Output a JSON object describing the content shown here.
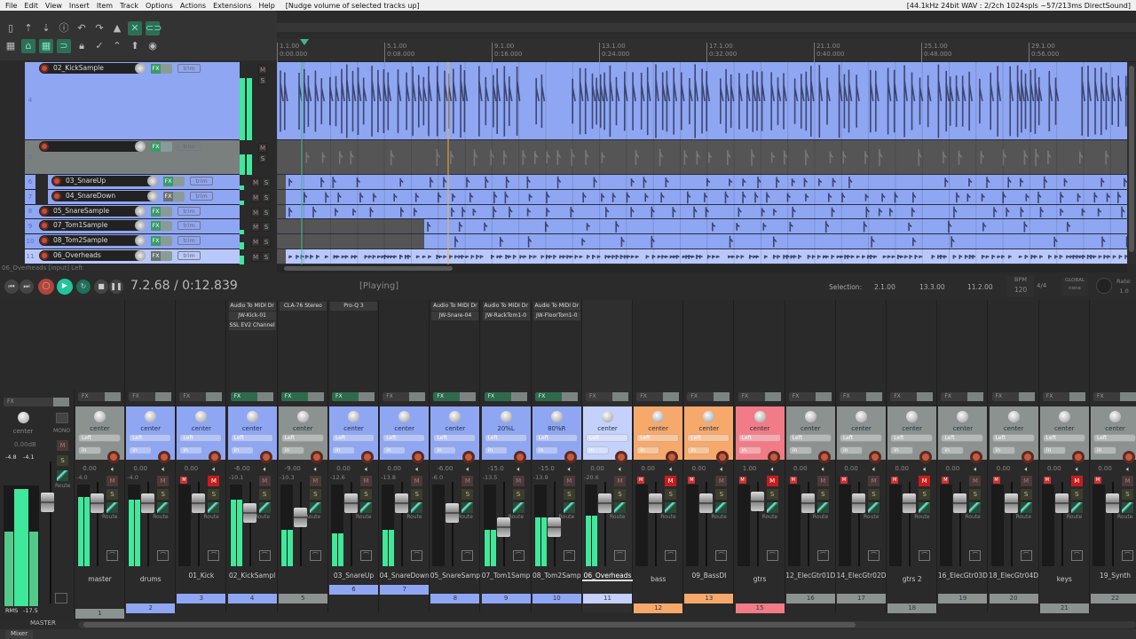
{
  "menu": [
    "File",
    "Edit",
    "View",
    "Insert",
    "Item",
    "Track",
    "Options",
    "Actions",
    "Extensions",
    "Help"
  ],
  "menu_status": "[Nudge volume of selected tracks up]",
  "audio_status": "[44.1kHz 24bit WAV : 2/2ch 1024spls ~57/213ms DirectSound]",
  "ruler": [
    [
      "1.1.00",
      "0:00.000"
    ],
    [
      "5.1.00",
      "0:08.000"
    ],
    [
      "9.1.00",
      "0:16.000"
    ],
    [
      "13.1.00",
      "0:24.000"
    ],
    [
      "17.1.00",
      "0:32.000"
    ],
    [
      "21.1.00",
      "0:40.000"
    ],
    [
      "25.1.00",
      "0:48.000"
    ],
    [
      "29.1.00",
      "0:56.000"
    ]
  ],
  "tracks": [
    {
      "num": "4",
      "name": "02_KickSample",
      "color": "#8fa6f3",
      "fx": true
    },
    {
      "num": "5",
      "name": "",
      "color": "#7a807e",
      "fx": true
    },
    {
      "num": "6",
      "name": "03_SnareUp",
      "color": "#8fa6f3",
      "fx": true
    },
    {
      "num": "7",
      "name": "04_SnareDown",
      "color": "#8fa6f3",
      "fx": false
    },
    {
      "num": "8",
      "name": "05_SnareSample",
      "color": "#8fa6f3",
      "fx": true
    },
    {
      "num": "9",
      "name": "07_Tom1Sample",
      "color": "#8fa6f3",
      "fx": true
    },
    {
      "num": "10",
      "name": "08_Tom2Sample",
      "color": "#8fa6f3",
      "fx": true
    },
    {
      "num": "11",
      "name": "06_Overheads",
      "color": "#b9c8fb",
      "fx": false
    }
  ],
  "trim_label": "trim",
  "fx_label": "FX",
  "m": "M",
  "s": "S",
  "status_line": "06_Overheads [input] Left",
  "transport": {
    "time": "7.2.68 / 0:12.839",
    "state": "[Playing]",
    "selection_label": "Selection:",
    "sel_start": "2.1.00",
    "sel_end": "13.3.00",
    "sel_len": "11.2.00",
    "bpm_label": "BPM",
    "bpm": "120",
    "timesig": "4/4",
    "global": "GLOBAL",
    "global_val": "none",
    "rate_label": "Rate:",
    "rate": "1.0"
  },
  "master": {
    "pan": "center",
    "mono": "MONO",
    "vol": "0.00dB",
    "peak_l": "-4.8",
    "peak_r": "-4.1",
    "rms": "RMS",
    "rms_val": "-17.5",
    "label": "MASTER",
    "route": "Route",
    "trim": "trim"
  },
  "strip_labels": {
    "left": "Left",
    "in": "in",
    "route": "Route",
    "trim": "trim"
  },
  "strips": [
    {
      "name": "master",
      "num": "1",
      "color": "#8c928f",
      "pan": "center",
      "vol": "0.00",
      "peak": "-4.0",
      "fxon": false,
      "fxlist": [],
      "mute": false,
      "pm": false,
      "meter": 0.85,
      "depth": 0
    },
    {
      "name": "drums",
      "num": "2",
      "color": "#8fa6f3",
      "pan": "center",
      "vol": "0.00",
      "peak": "-4.0",
      "fxon": false,
      "fxlist": [],
      "mute": false,
      "pm": false,
      "meter": 0.82,
      "depth": 1
    },
    {
      "name": "01_Kick",
      "num": "3",
      "color": "#8fa6f3",
      "pan": "center",
      "vol": "0.00",
      "peak": "",
      "fxon": false,
      "fxlist": [],
      "mute": true,
      "pm": true,
      "meter": 0,
      "depth": 2
    },
    {
      "name": "02_KickSampl",
      "num": "4",
      "color": "#8fa6f3",
      "pan": "center",
      "vol": "-6.00",
      "peak": "-10.1",
      "fxon": true,
      "fxlist": [
        "Audio To MIDI Dr",
        "JW-Kick-01",
        "SSL EV2 Channel"
      ],
      "mute": false,
      "pm": false,
      "meter": 0.82,
      "depth": 2
    },
    {
      "name": "",
      "num": "5",
      "color": "#8c928f",
      "pan": "center",
      "vol": "-9.00",
      "peak": "-10.3",
      "fxon": true,
      "fxlist": [
        "CLA-76 Stereo"
      ],
      "mute": false,
      "pm": false,
      "meter": 0.45,
      "depth": 2
    },
    {
      "name": "03_SnareUp",
      "num": "6",
      "color": "#8fa6f3",
      "pan": "center",
      "vol": "0.00",
      "peak": "-12.6",
      "fxon": true,
      "fxlist": [
        "Pro-Q 3"
      ],
      "mute": false,
      "pm": false,
      "meter": 0.4,
      "depth": 3
    },
    {
      "name": "04_SnareDown",
      "num": "7",
      "color": "#8fa6f3",
      "pan": "center",
      "vol": "0.00",
      "peak": "-13.8",
      "fxon": false,
      "fxlist": [],
      "mute": false,
      "pm": false,
      "meter": 0.45,
      "depth": 3
    },
    {
      "name": "05_SnareSamp",
      "num": "8",
      "color": "#8fa6f3",
      "pan": "center",
      "vol": "-6.00",
      "peak": "-6.0",
      "fxon": true,
      "fxlist": [
        "Audio To MIDI Dr",
        "JW-Snare-04"
      ],
      "mute": false,
      "pm": false,
      "meter": 0,
      "depth": 2
    },
    {
      "name": "07_Tom1Samp",
      "num": "9",
      "color": "#8fa6f3",
      "pan": "20%L",
      "vol": "-15.0",
      "peak": "-13.5",
      "fxon": true,
      "fxlist": [
        "Audio To MIDI Dr",
        "JW-RackTom1-0"
      ],
      "mute": false,
      "pm": false,
      "meter": 0.45,
      "depth": 2
    },
    {
      "name": "08_Tom2Samp",
      "num": "10",
      "color": "#8fa6f3",
      "pan": "80%R",
      "vol": "-15.0",
      "peak": "-13.9",
      "fxon": true,
      "fxlist": [
        "Audio To MIDI Dr",
        "JW-FloorTom1-0"
      ],
      "mute": false,
      "pm": false,
      "meter": 0.6,
      "depth": 2
    },
    {
      "name": "06_Overheads",
      "num": "11",
      "color": "#c4d1fb",
      "pan": "center",
      "vol": "0.00",
      "peak": "-20.6",
      "fxon": false,
      "fxlist": [],
      "mute": false,
      "pm": false,
      "meter": 0.62,
      "depth": 2
    },
    {
      "name": "bass",
      "num": "12",
      "color": "#f6a96b",
      "pan": "center",
      "vol": "0.00",
      "peak": "",
      "fxon": false,
      "fxlist": [],
      "mute": true,
      "pm": true,
      "meter": 0,
      "depth": 1
    },
    {
      "name": "09_BassDI",
      "num": "13",
      "color": "#f6a96b",
      "pan": "center",
      "vol": "0.00",
      "peak": "",
      "fxon": false,
      "fxlist": [],
      "mute": false,
      "pm": true,
      "meter": 0,
      "depth": 2
    },
    {
      "name": "gtrs",
      "num": "15",
      "color": "#f17b86",
      "pan": "center",
      "vol": "1.00",
      "peak": "",
      "fxon": false,
      "fxlist": [],
      "mute": true,
      "pm": true,
      "meter": 0,
      "depth": 1
    },
    {
      "name": "12_ElecGtr01D",
      "num": "16",
      "color": "#8c928f",
      "pan": "center",
      "vol": "0.00",
      "peak": "",
      "fxon": false,
      "fxlist": [],
      "mute": false,
      "pm": true,
      "meter": 0,
      "depth": 2
    },
    {
      "name": "14_ElecGtr02D",
      "num": "17",
      "color": "#8c928f",
      "pan": "center",
      "vol": "0.00",
      "peak": "",
      "fxon": false,
      "fxlist": [],
      "mute": false,
      "pm": true,
      "meter": 0,
      "depth": 2
    },
    {
      "name": "gtrs 2",
      "num": "18",
      "color": "#8c928f",
      "pan": "center",
      "vol": "0.00",
      "peak": "",
      "fxon": false,
      "fxlist": [],
      "mute": true,
      "pm": true,
      "meter": 0,
      "depth": 1
    },
    {
      "name": "16_ElecGtr03D",
      "num": "19",
      "color": "#8c928f",
      "pan": "center",
      "vol": "0.00",
      "peak": "",
      "fxon": false,
      "fxlist": [],
      "mute": false,
      "pm": true,
      "meter": 0,
      "depth": 2
    },
    {
      "name": "18_ElecGtr04D",
      "num": "20",
      "color": "#8c928f",
      "pan": "center",
      "vol": "0.00",
      "peak": "",
      "fxon": false,
      "fxlist": [],
      "mute": false,
      "pm": true,
      "meter": 0,
      "depth": 2
    },
    {
      "name": "keys",
      "num": "21",
      "color": "#8c928f",
      "pan": "center",
      "vol": "0.00",
      "peak": "",
      "fxon": false,
      "fxlist": [],
      "mute": true,
      "pm": true,
      "meter": 0,
      "depth": 1
    },
    {
      "name": "19_Synth",
      "num": "22",
      "color": "#8c928f",
      "pan": "center",
      "vol": "0.00",
      "peak": "",
      "fxon": false,
      "fxlist": [],
      "mute": false,
      "pm": true,
      "meter": 0,
      "depth": 2
    }
  ],
  "mixer_tab": "Mixer"
}
